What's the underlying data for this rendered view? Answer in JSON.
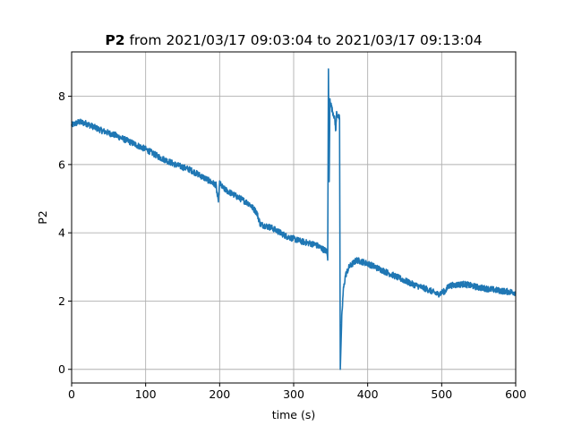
{
  "chart_data": {
    "type": "line",
    "title_bold": "P2",
    "title_rest": " from 2021/03/17 09:03:04 to 2021/03/17 09:13:04",
    "xlabel": "time (s)",
    "ylabel": "P2",
    "xlim": [
      0,
      600
    ],
    "ylim": [
      -0.4,
      9.3
    ],
    "xticks": [
      0,
      100,
      200,
      300,
      400,
      500,
      600
    ],
    "xtick_labels": [
      "0",
      "100",
      "200",
      "300",
      "400",
      "500",
      "600"
    ],
    "yticks": [
      0,
      2,
      4,
      6,
      8
    ],
    "ytick_labels": [
      "0",
      "2",
      "4",
      "6",
      "8"
    ],
    "grid": true,
    "series": [
      {
        "color": "#1f77b4",
        "noise": 0.09,
        "points": [
          [
            0,
            7.15
          ],
          [
            10,
            7.25
          ],
          [
            20,
            7.2
          ],
          [
            40,
            7.0
          ],
          [
            60,
            6.85
          ],
          [
            80,
            6.65
          ],
          [
            100,
            6.45
          ],
          [
            120,
            6.2
          ],
          [
            140,
            6.0
          ],
          [
            160,
            5.85
          ],
          [
            180,
            5.6
          ],
          [
            195,
            5.4
          ],
          [
            198,
            4.9
          ],
          [
            200,
            5.45
          ],
          [
            205,
            5.3
          ],
          [
            220,
            5.1
          ],
          [
            240,
            4.85
          ],
          [
            250,
            4.6
          ],
          [
            255,
            4.25
          ],
          [
            270,
            4.15
          ],
          [
            290,
            3.9
          ],
          [
            310,
            3.75
          ],
          [
            330,
            3.65
          ],
          [
            345,
            3.45
          ],
          [
            346,
            3.2
          ],
          [
            347,
            8.8
          ],
          [
            348,
            5.5
          ],
          [
            349,
            7.9
          ],
          [
            352,
            7.6
          ],
          [
            355,
            7.4
          ],
          [
            357,
            7.0
          ],
          [
            358,
            7.5
          ],
          [
            362,
            7.35
          ],
          [
            363,
            0.0
          ],
          [
            365,
            1.5
          ],
          [
            367,
            2.3
          ],
          [
            370,
            2.75
          ],
          [
            375,
            3.0
          ],
          [
            385,
            3.2
          ],
          [
            400,
            3.1
          ],
          [
            420,
            2.9
          ],
          [
            440,
            2.7
          ],
          [
            460,
            2.5
          ],
          [
            480,
            2.35
          ],
          [
            495,
            2.2
          ],
          [
            505,
            2.3
          ],
          [
            510,
            2.45
          ],
          [
            530,
            2.5
          ],
          [
            550,
            2.4
          ],
          [
            580,
            2.3
          ],
          [
            600,
            2.25
          ]
        ]
      }
    ]
  }
}
